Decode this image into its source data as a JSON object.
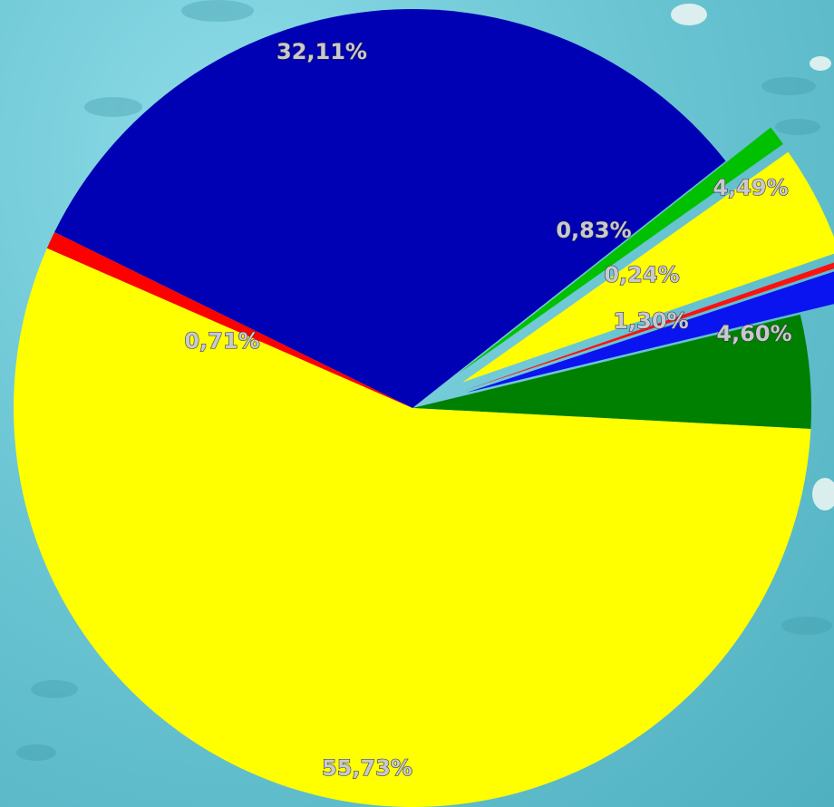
{
  "chart_data": {
    "type": "pie",
    "slices": [
      {
        "value": 4.6,
        "label": "4,60%",
        "color": "#008000",
        "exploded": false
      },
      {
        "value": 1.3,
        "label": "1,30%",
        "color": "#0a14f0",
        "exploded": true
      },
      {
        "value": 0.24,
        "label": "0,24%",
        "color": "#ff1010",
        "exploded": true
      },
      {
        "value": 4.49,
        "label": "4,49%",
        "color": "#ffff00",
        "exploded": true
      },
      {
        "value": 0.83,
        "label": "0,83%",
        "color": "#00c000",
        "exploded": true
      },
      {
        "value": 32.11,
        "label": "32,11%",
        "color": "#0000b4",
        "exploded": false
      },
      {
        "value": 0.71,
        "label": "0,71%",
        "color": "#ff0000",
        "exploded": false
      },
      {
        "value": 55.73,
        "label": "55,73%",
        "color": "#ffff00",
        "exploded": false
      }
    ],
    "start_angle_deg": -3,
    "direction": "counterclockwise",
    "legend": "none"
  }
}
